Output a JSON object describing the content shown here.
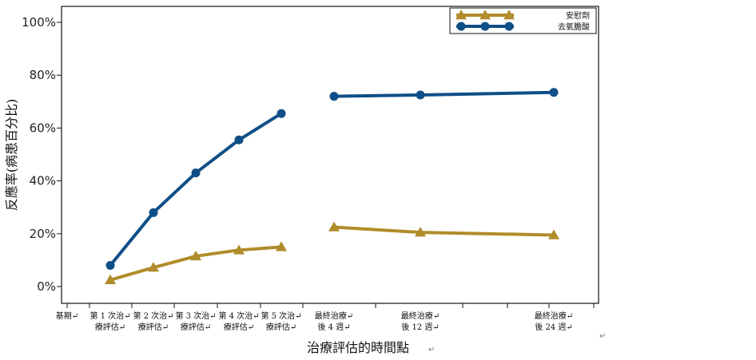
{
  "chart_data": {
    "type": "line",
    "xlabel": "治療評估的時間點",
    "ylabel": "反應率(病患百分比)",
    "ylim": [
      0,
      1.05
    ],
    "yticks": [
      0,
      0.2,
      0.4,
      0.6,
      0.8,
      1.0
    ],
    "ytick_labels": [
      "0%",
      "20%",
      "40%",
      "60%",
      "80%",
      "100%"
    ],
    "grid": false,
    "legend_position": "top-right",
    "categories": [
      [
        "基期"
      ],
      [
        "第 1 次治",
        "療評估"
      ],
      [
        "第 2 次治",
        "療評估"
      ],
      [
        "第 3 次治",
        "療評估"
      ],
      [
        "第 4 次治",
        "療評估"
      ],
      [
        "第 5 次治",
        "療評估"
      ],
      [
        "最終治療",
        "後 4 週"
      ],
      [
        "最終治療",
        "後 12 週"
      ],
      [
        "最終治療",
        "後 24 週"
      ]
    ],
    "series": [
      {
        "name": "安慰劑",
        "color": "#b08c2a",
        "marker": "triangle",
        "segments": [
          [
            [
              1,
              0.025
            ],
            [
              2,
              0.072
            ],
            [
              3,
              0.115
            ],
            [
              4,
              0.138
            ],
            [
              5,
              0.15
            ]
          ],
          [
            [
              6,
              0.225
            ],
            [
              7,
              0.205
            ],
            [
              8,
              0.195
            ]
          ]
        ]
      },
      {
        "name": "去氧膽酸",
        "color": "#0f4f87",
        "marker": "circle",
        "segments": [
          [
            [
              1,
              0.08
            ],
            [
              2,
              0.28
            ],
            [
              3,
              0.43
            ],
            [
              4,
              0.555
            ],
            [
              5,
              0.655
            ]
          ],
          [
            [
              6,
              0.72
            ],
            [
              7,
              0.725
            ],
            [
              8,
              0.735
            ]
          ]
        ]
      }
    ]
  },
  "stray_marks": [
    "↵",
    "↵"
  ]
}
